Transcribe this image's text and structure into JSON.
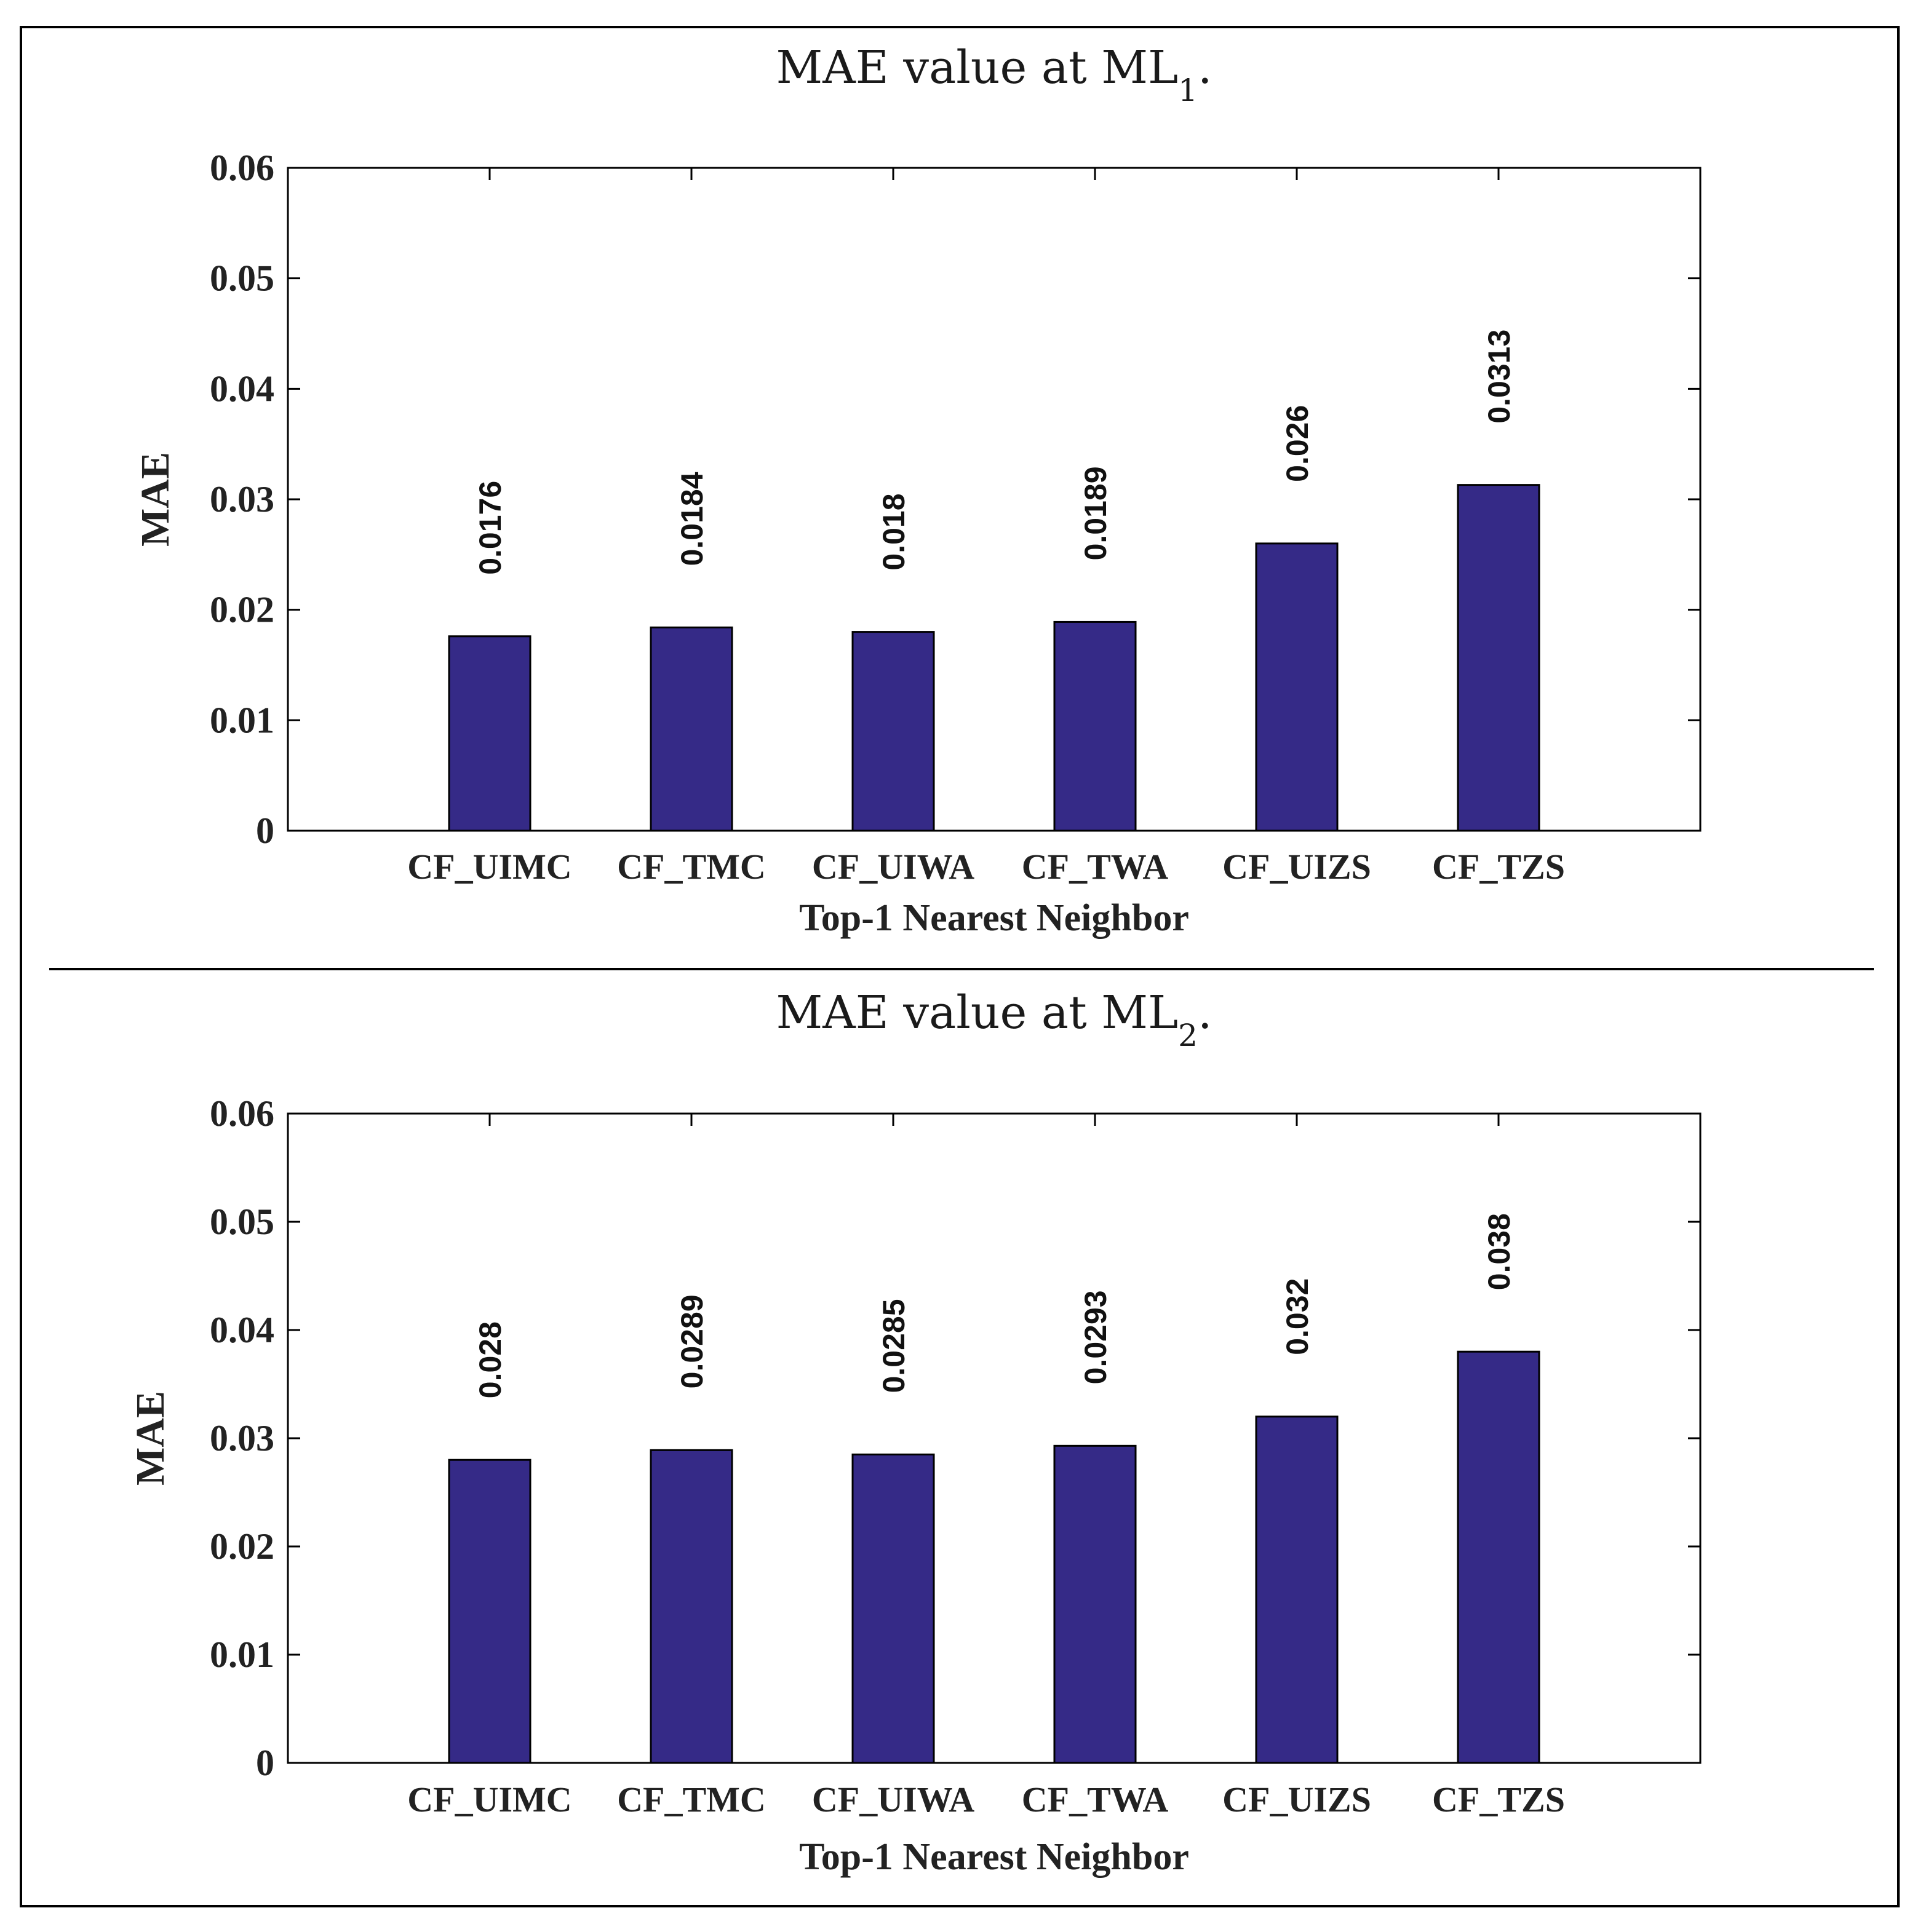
{
  "chart_data": [
    {
      "type": "bar",
      "title": "MAE value at ML",
      "title_subscript": "1",
      "title_suffix": ".",
      "xlabel": "Top-1 Nearest Neighbor",
      "ylabel": "MAE",
      "categories": [
        "CF_UIMC",
        "CF_TMC",
        "CF_UIWA",
        "CF_TWA",
        "CF_UIZS",
        "CF_TZS"
      ],
      "values": [
        0.0176,
        0.0184,
        0.018,
        0.0189,
        0.026,
        0.0313
      ],
      "data_labels": [
        "0.0176",
        "0.0184",
        "0.018",
        "0.0189",
        "0.026",
        "0.0313"
      ],
      "ylim": [
        0,
        0.06
      ],
      "yticks": [
        0,
        0.01,
        0.02,
        0.03,
        0.04,
        0.05,
        0.06
      ],
      "ytick_labels": [
        "0",
        "0.01",
        "0.02",
        "0.03",
        "0.04",
        "0.05",
        "0.06"
      ],
      "grid": false,
      "bar_color": "#352a87"
    },
    {
      "type": "bar",
      "title": "MAE value at ML",
      "title_subscript": "2",
      "title_suffix": ".",
      "xlabel": "Top-1 Nearest Neighbor",
      "ylabel": "MAE",
      "categories": [
        "CF_UIMC",
        "CF_TMC",
        "CF_UIWA",
        "CF_TWA",
        "CF_UIZS",
        "CF_TZS"
      ],
      "values": [
        0.028,
        0.0289,
        0.0285,
        0.0293,
        0.032,
        0.038
      ],
      "data_labels": [
        "0.028",
        "0.0289",
        "0.0285",
        "0.0293",
        "0.032",
        "0.038"
      ],
      "ylim": [
        0,
        0.06
      ],
      "yticks": [
        0,
        0.01,
        0.02,
        0.03,
        0.04,
        0.05,
        0.06
      ],
      "ytick_labels": [
        "0",
        "0.01",
        "0.02",
        "0.03",
        "0.04",
        "0.05",
        "0.06"
      ],
      "grid": false,
      "bar_color": "#352a87"
    }
  ]
}
